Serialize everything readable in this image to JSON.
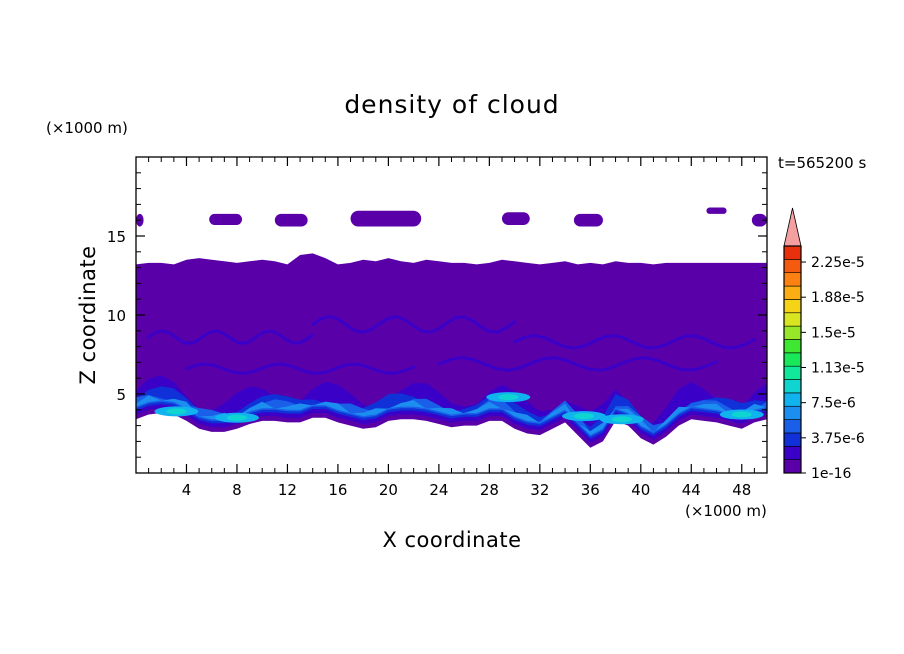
{
  "chart_data": {
    "type": "heatmap",
    "title": "density of cloud",
    "time_label": "t=565200 s",
    "xlabel": "X coordinate",
    "ylabel": "Z coordinate",
    "x_unit": "(×1000 m)",
    "y_unit": "(×1000 m)",
    "xlim": [
      0,
      50
    ],
    "ylim": [
      0,
      20
    ],
    "x_ticks": [
      4,
      8,
      12,
      16,
      20,
      24,
      28,
      32,
      36,
      40,
      44,
      48
    ],
    "y_ticks": [
      5,
      10,
      15
    ],
    "colorbar": {
      "labels": [
        "1e-16",
        "3.75e-6",
        "7.5e-6",
        "1.13e-5",
        "1.5e-5",
        "1.88e-5",
        "2.25e-5"
      ],
      "colors": [
        "#5a00a8",
        "#3a00c8",
        "#1030d8",
        "#1a5fe8",
        "#1c8ef0",
        "#11b3ef",
        "#10d4d0",
        "#12e89c",
        "#19e858",
        "#3ee832",
        "#98e628",
        "#d8e520",
        "#f5d418",
        "#fbad14",
        "#fb8212",
        "#f45a10",
        "#e8300c",
        "#f4a0a0"
      ],
      "extend": "max"
    },
    "contour_levels": {
      "boundary_level_1_km": [
        3.4,
        3.7,
        3.8,
        3.7,
        3.3,
        2.8,
        2.6,
        2.6,
        2.8,
        3.1,
        3.3,
        3.3,
        3.2,
        3.2,
        3.5,
        3.5,
        3.2,
        3.0,
        2.8,
        2.9,
        3.3,
        3.4,
        3.4,
        3.3,
        3.1,
        2.9,
        3.0,
        3.0,
        3.3,
        3.3,
        2.8,
        2.5,
        2.4,
        2.8,
        3.2,
        2.4,
        1.6,
        2.0,
        3.3,
        3.0,
        2.2,
        1.8,
        2.3,
        3.0,
        3.4,
        3.3,
        3.2,
        3.0,
        2.8,
        3.2,
        3.4
      ],
      "top_layer_km": [
        13.2,
        13.3,
        13.3,
        13.2,
        13.5,
        13.6,
        13.5,
        13.4,
        13.3,
        13.4,
        13.5,
        13.4,
        13.2,
        13.8,
        13.9,
        13.6,
        13.2,
        13.3,
        13.5,
        13.4,
        13.6,
        13.4,
        13.3,
        13.5,
        13.4,
        13.3,
        13.3,
        13.2,
        13.3,
        13.5,
        13.4,
        13.3,
        13.2,
        13.3,
        13.4,
        13.2,
        13.3,
        13.2,
        13.4,
        13.3,
        13.3,
        13.2,
        13.3,
        13.3,
        13.3,
        13.3,
        13.3,
        13.3,
        13.3,
        13.3,
        13.3
      ],
      "upper_patches_km": [
        {
          "x": [
            0,
            0.6
          ],
          "z": [
            15.6,
            16.4
          ]
        },
        {
          "x": [
            5.8,
            8.4
          ],
          "z": [
            15.7,
            16.4
          ]
        },
        {
          "x": [
            11.0,
            13.6
          ],
          "z": [
            15.6,
            16.4
          ]
        },
        {
          "x": [
            17.0,
            22.6
          ],
          "z": [
            15.6,
            16.6
          ]
        },
        {
          "x": [
            29.0,
            31.2
          ],
          "z": [
            15.7,
            16.5
          ]
        },
        {
          "x": [
            34.7,
            37.0
          ],
          "z": [
            15.6,
            16.4
          ]
        },
        {
          "x": [
            45.2,
            46.8
          ],
          "z": [
            16.4,
            16.8
          ]
        },
        {
          "x": [
            48.8,
            50
          ],
          "z": [
            15.6,
            16.4
          ]
        }
      ]
    }
  }
}
